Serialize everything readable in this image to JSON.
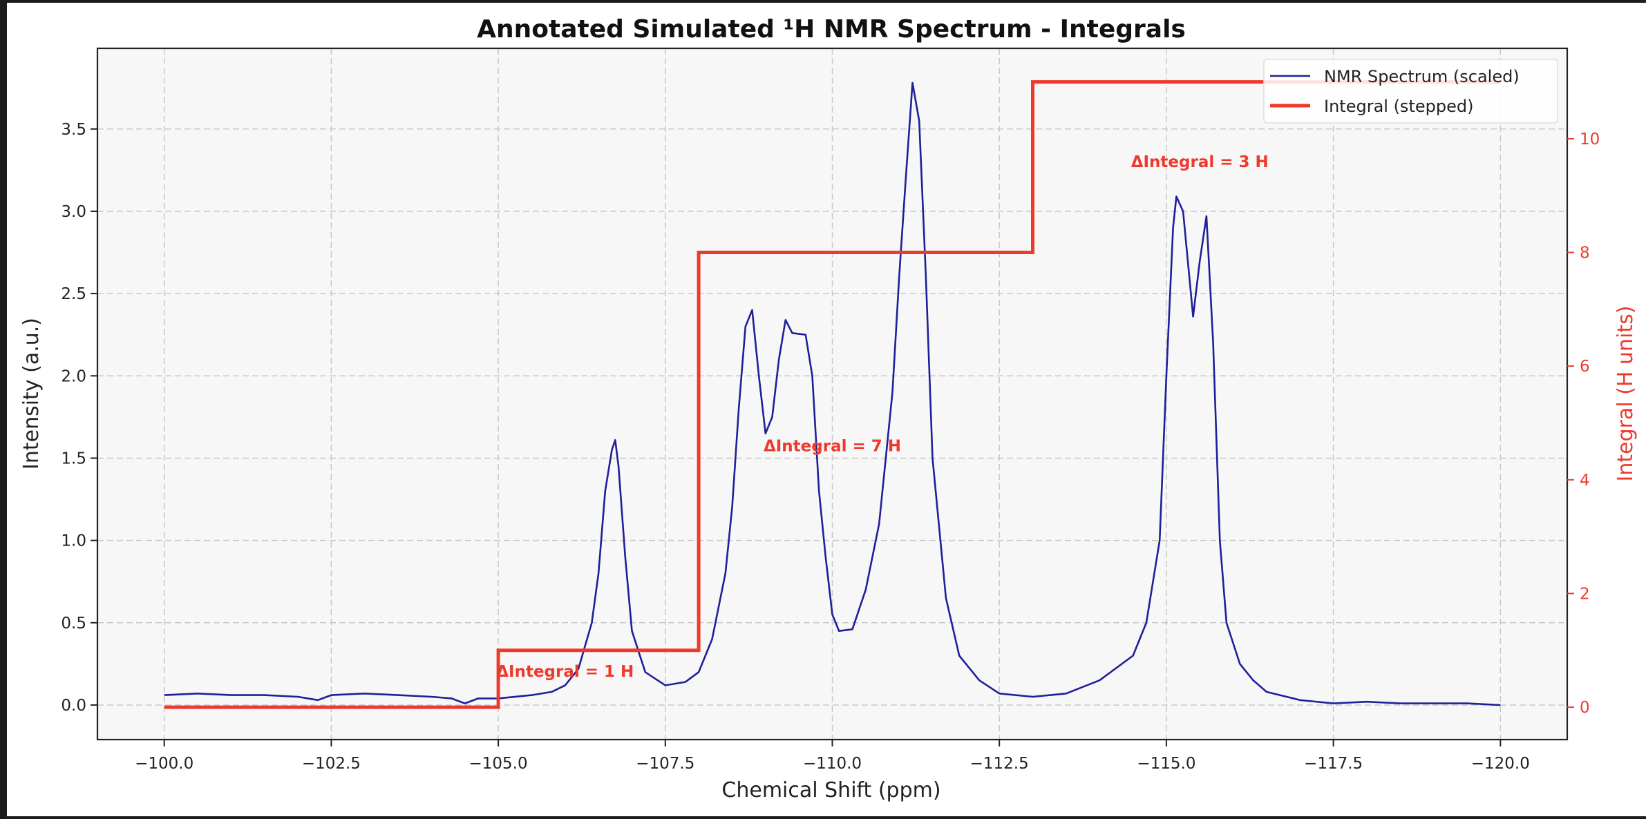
{
  "chart_data": {
    "type": "line",
    "title": "Annotated Simulated ¹H NMR Spectrum - Integrals",
    "xlabel": "Chemical Shift (ppm)",
    "ylabel": "Intensity (a.u.)",
    "ylabel_right": "Integral (H units)",
    "xlim": [
      -99.0,
      -121.0
    ],
    "ylim": [
      -0.21,
      3.99
    ],
    "ylim_right": [
      -0.57,
      11.59
    ],
    "xticks": [
      -100.0,
      -102.5,
      -105.0,
      -107.5,
      -110.0,
      -112.5,
      -115.0,
      -117.5,
      -120.0
    ],
    "xtick_labels": [
      "−100.0",
      "−102.5",
      "−105.0",
      "−107.5",
      "−110.0",
      "−112.5",
      "−115.0",
      "−117.5",
      "−120.0"
    ],
    "yticks": [
      0.0,
      0.5,
      1.0,
      1.5,
      2.0,
      2.5,
      3.0,
      3.5
    ],
    "ytick_labels": [
      "0.0",
      "0.5",
      "1.0",
      "1.5",
      "2.0",
      "2.5",
      "3.0",
      "3.5"
    ],
    "yticks_right": [
      0,
      2,
      4,
      6,
      8,
      10
    ],
    "ytick_labels_right": [
      "0",
      "2",
      "4",
      "6",
      "8",
      "10"
    ],
    "grid": true,
    "legend_placement": "top-right",
    "colors": {
      "spectrum": "#1f1f9a",
      "integral": "#ee3a2c",
      "plot_bg": "#f7f7f7",
      "right_axis": "#ee3a2c"
    },
    "series": [
      {
        "name": "NMR Spectrum (scaled)",
        "axis": "left",
        "x": [
          -100,
          -100.5,
          -101,
          -101.5,
          -102,
          -102.3,
          -102.5,
          -103,
          -103.5,
          -104,
          -104.3,
          -104.5,
          -104.7,
          -105,
          -105.5,
          -105.8,
          -106,
          -106.2,
          -106.4,
          -106.5,
          -106.6,
          -106.7,
          -106.75,
          -106.8,
          -106.9,
          -107,
          -107.2,
          -107.5,
          -107.8,
          -108,
          -108.2,
          -108.4,
          -108.5,
          -108.6,
          -108.7,
          -108.8,
          -108.9,
          -109.0,
          -109.1,
          -109.2,
          -109.3,
          -109.4,
          -109.6,
          -109.7,
          -109.8,
          -109.9,
          -110.0,
          -110.1,
          -110.3,
          -110.5,
          -110.7,
          -110.9,
          -111.0,
          -111.1,
          -111.2,
          -111.3,
          -111.4,
          -111.5,
          -111.7,
          -111.9,
          -112.2,
          -112.5,
          -113,
          -113.5,
          -114,
          -114.5,
          -114.7,
          -114.9,
          -115.0,
          -115.1,
          -115.15,
          -115.25,
          -115.4,
          -115.5,
          -115.6,
          -115.7,
          -115.8,
          -115.9,
          -116.1,
          -116.3,
          -116.5,
          -117,
          -117.5,
          -118,
          -118.5,
          -119,
          -119.5,
          -120
        ],
        "y": [
          0.06,
          0.07,
          0.06,
          0.06,
          0.05,
          0.03,
          0.06,
          0.07,
          0.06,
          0.05,
          0.04,
          0.01,
          0.04,
          0.04,
          0.06,
          0.08,
          0.12,
          0.22,
          0.5,
          0.8,
          1.3,
          1.55,
          1.61,
          1.45,
          0.9,
          0.45,
          0.2,
          0.12,
          0.14,
          0.2,
          0.4,
          0.8,
          1.2,
          1.8,
          2.3,
          2.4,
          2.0,
          1.65,
          1.75,
          2.1,
          2.34,
          2.26,
          2.25,
          2.0,
          1.3,
          0.9,
          0.55,
          0.45,
          0.46,
          0.7,
          1.1,
          1.9,
          2.6,
          3.2,
          3.78,
          3.55,
          2.6,
          1.5,
          0.65,
          0.3,
          0.15,
          0.07,
          0.05,
          0.07,
          0.15,
          0.3,
          0.5,
          1.0,
          2.0,
          2.9,
          3.09,
          3.0,
          2.36,
          2.7,
          2.97,
          2.2,
          1.0,
          0.5,
          0.25,
          0.15,
          0.08,
          0.03,
          0.01,
          0.02,
          0.01,
          0.01,
          0.01,
          0.0
        ]
      },
      {
        "name": "Integral (stepped)",
        "axis": "right",
        "x": [
          -100,
          -105,
          -105,
          -108,
          -108,
          -113,
          -113,
          -120
        ],
        "y": [
          0,
          0,
          1,
          1,
          8,
          8,
          11,
          11
        ]
      }
    ],
    "annotations": [
      {
        "text": "ΔIntegral = 1 H",
        "x": -106.0,
        "y": 0.63
      },
      {
        "text": "ΔIntegral = 7 H",
        "x": -110.0,
        "y": 4.6
      },
      {
        "text": "ΔIntegral = 3 H",
        "x": -115.5,
        "y": 9.6
      }
    ]
  }
}
